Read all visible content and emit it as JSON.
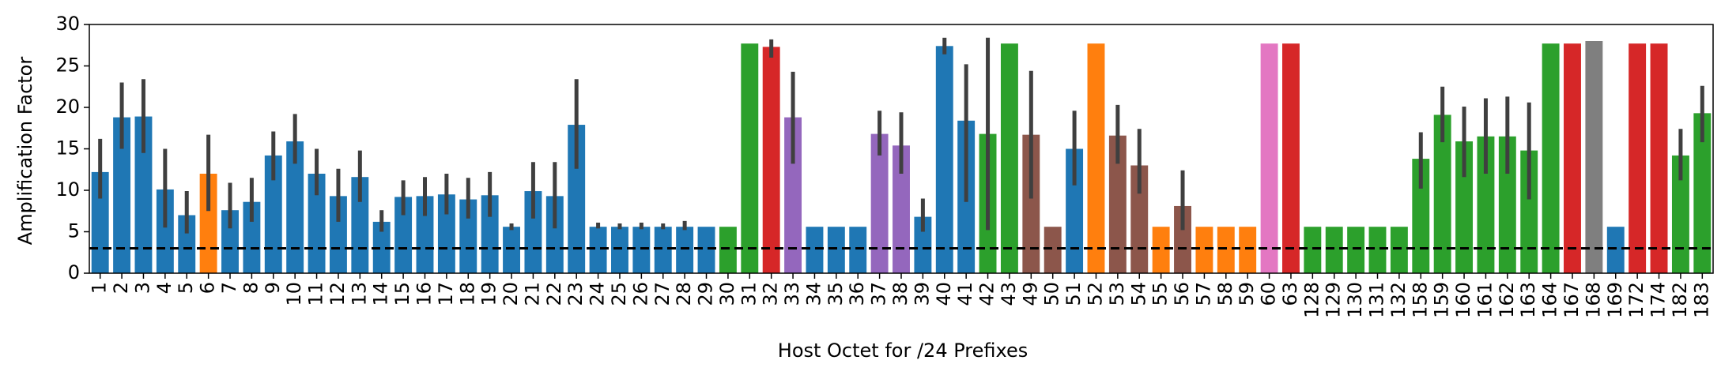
{
  "chart_data": {
    "type": "bar",
    "title": "",
    "xlabel": "Host Octet for /24 Prefixes",
    "ylabel": "Amplification Factor",
    "ylim": [
      0,
      30
    ],
    "yticks": [
      0,
      5,
      10,
      15,
      20,
      25,
      30
    ],
    "reference_line": {
      "y": 3,
      "style": "dashed",
      "color": "#000000"
    },
    "palette": {
      "blue": "#1f77b4",
      "orange": "#ff7f0e",
      "green": "#2ca02c",
      "red": "#d62728",
      "purple": "#9467bd",
      "brown": "#8c564b",
      "pink": "#e377c2",
      "gray": "#7f7f7f"
    },
    "error_bar_color": "#3f3f3f",
    "bars": [
      {
        "label": "1",
        "value": 12.2,
        "err": [
          9.0,
          16.2
        ],
        "color": "blue"
      },
      {
        "label": "2",
        "value": 18.8,
        "err": [
          15.0,
          23.0
        ],
        "color": "blue"
      },
      {
        "label": "3",
        "value": 18.9,
        "err": [
          14.5,
          23.4
        ],
        "color": "blue"
      },
      {
        "label": "4",
        "value": 10.1,
        "err": [
          5.5,
          15.0
        ],
        "color": "blue"
      },
      {
        "label": "5",
        "value": 7.0,
        "err": [
          4.8,
          9.9
        ],
        "color": "blue"
      },
      {
        "label": "6",
        "value": 12.0,
        "err": [
          7.5,
          16.7
        ],
        "color": "orange"
      },
      {
        "label": "7",
        "value": 7.6,
        "err": [
          5.4,
          10.9
        ],
        "color": "blue"
      },
      {
        "label": "8",
        "value": 8.6,
        "err": [
          6.2,
          11.5
        ],
        "color": "blue"
      },
      {
        "label": "9",
        "value": 14.2,
        "err": [
          11.2,
          17.1
        ],
        "color": "blue"
      },
      {
        "label": "10",
        "value": 15.9,
        "err": [
          13.2,
          19.2
        ],
        "color": "blue"
      },
      {
        "label": "11",
        "value": 12.0,
        "err": [
          9.4,
          15.0
        ],
        "color": "blue"
      },
      {
        "label": "12",
        "value": 9.3,
        "err": [
          6.2,
          12.6
        ],
        "color": "blue"
      },
      {
        "label": "13",
        "value": 11.6,
        "err": [
          8.6,
          14.8
        ],
        "color": "blue"
      },
      {
        "label": "14",
        "value": 6.2,
        "err": [
          5.0,
          7.6
        ],
        "color": "blue"
      },
      {
        "label": "15",
        "value": 9.2,
        "err": [
          7.0,
          11.2
        ],
        "color": "blue"
      },
      {
        "label": "16",
        "value": 9.3,
        "err": [
          6.9,
          11.6
        ],
        "color": "blue"
      },
      {
        "label": "17",
        "value": 9.5,
        "err": [
          7.1,
          12.0
        ],
        "color": "blue"
      },
      {
        "label": "18",
        "value": 8.9,
        "err": [
          6.6,
          11.5
        ],
        "color": "blue"
      },
      {
        "label": "19",
        "value": 9.4,
        "err": [
          6.8,
          12.2
        ],
        "color": "blue"
      },
      {
        "label": "20",
        "value": 5.6,
        "err": [
          5.2,
          6.0
        ],
        "color": "blue"
      },
      {
        "label": "21",
        "value": 9.9,
        "err": [
          6.6,
          13.4
        ],
        "color": "blue"
      },
      {
        "label": "22",
        "value": 9.3,
        "err": [
          5.4,
          13.4
        ],
        "color": "blue"
      },
      {
        "label": "23",
        "value": 17.9,
        "err": [
          12.6,
          23.4
        ],
        "color": "blue"
      },
      {
        "label": "24",
        "value": 5.6,
        "err": [
          5.4,
          6.1
        ],
        "color": "blue"
      },
      {
        "label": "25",
        "value": 5.6,
        "err": [
          5.3,
          6.0
        ],
        "color": "blue"
      },
      {
        "label": "26",
        "value": 5.6,
        "err": [
          5.3,
          6.1
        ],
        "color": "blue"
      },
      {
        "label": "27",
        "value": 5.6,
        "err": [
          5.3,
          6.0
        ],
        "color": "blue"
      },
      {
        "label": "28",
        "value": 5.6,
        "err": [
          5.2,
          6.3
        ],
        "color": "blue"
      },
      {
        "label": "29",
        "value": 5.6,
        "err": null,
        "color": "blue"
      },
      {
        "label": "30",
        "value": 5.6,
        "err": null,
        "color": "green"
      },
      {
        "label": "31",
        "value": 27.7,
        "err": null,
        "color": "green"
      },
      {
        "label": "32",
        "value": 27.3,
        "err": [
          26.0,
          28.2
        ],
        "color": "red"
      },
      {
        "label": "33",
        "value": 18.8,
        "err": [
          13.2,
          24.3
        ],
        "color": "purple"
      },
      {
        "label": "34",
        "value": 5.6,
        "err": null,
        "color": "blue"
      },
      {
        "label": "35",
        "value": 5.6,
        "err": null,
        "color": "blue"
      },
      {
        "label": "36",
        "value": 5.6,
        "err": null,
        "color": "blue"
      },
      {
        "label": "37",
        "value": 16.8,
        "err": [
          14.2,
          19.6
        ],
        "color": "purple"
      },
      {
        "label": "38",
        "value": 15.4,
        "err": [
          12.0,
          19.4
        ],
        "color": "purple"
      },
      {
        "label": "39",
        "value": 6.8,
        "err": [
          5.0,
          9.0
        ],
        "color": "blue"
      },
      {
        "label": "40",
        "value": 27.4,
        "err": [
          26.4,
          28.4
        ],
        "color": "blue"
      },
      {
        "label": "41",
        "value": 18.4,
        "err": [
          8.6,
          25.2
        ],
        "color": "blue"
      },
      {
        "label": "42",
        "value": 16.8,
        "err": [
          5.2,
          28.4
        ],
        "color": "green"
      },
      {
        "label": "43",
        "value": 27.7,
        "err": null,
        "color": "green"
      },
      {
        "label": "49",
        "value": 16.7,
        "err": [
          9.0,
          24.4
        ],
        "color": "brown"
      },
      {
        "label": "50",
        "value": 5.6,
        "err": null,
        "color": "brown"
      },
      {
        "label": "51",
        "value": 15.0,
        "err": [
          10.6,
          19.6
        ],
        "color": "blue"
      },
      {
        "label": "52",
        "value": 27.7,
        "err": null,
        "color": "orange"
      },
      {
        "label": "53",
        "value": 16.6,
        "err": [
          13.2,
          20.3
        ],
        "color": "brown"
      },
      {
        "label": "54",
        "value": 13.0,
        "err": [
          9.6,
          17.4
        ],
        "color": "brown"
      },
      {
        "label": "55",
        "value": 5.6,
        "err": null,
        "color": "orange"
      },
      {
        "label": "56",
        "value": 8.1,
        "err": [
          5.2,
          12.4
        ],
        "color": "brown"
      },
      {
        "label": "57",
        "value": 5.6,
        "err": null,
        "color": "orange"
      },
      {
        "label": "58",
        "value": 5.6,
        "err": null,
        "color": "orange"
      },
      {
        "label": "59",
        "value": 5.6,
        "err": null,
        "color": "orange"
      },
      {
        "label": "60",
        "value": 27.7,
        "err": null,
        "color": "pink"
      },
      {
        "label": "63",
        "value": 27.7,
        "err": null,
        "color": "red"
      },
      {
        "label": "128",
        "value": 5.6,
        "err": null,
        "color": "green"
      },
      {
        "label": "129",
        "value": 5.6,
        "err": null,
        "color": "green"
      },
      {
        "label": "130",
        "value": 5.6,
        "err": null,
        "color": "green"
      },
      {
        "label": "131",
        "value": 5.6,
        "err": null,
        "color": "green"
      },
      {
        "label": "132",
        "value": 5.6,
        "err": null,
        "color": "green"
      },
      {
        "label": "158",
        "value": 13.8,
        "err": [
          10.2,
          17.0
        ],
        "color": "green"
      },
      {
        "label": "159",
        "value": 19.1,
        "err": [
          15.8,
          22.5
        ],
        "color": "green"
      },
      {
        "label": "160",
        "value": 15.9,
        "err": [
          11.6,
          20.1
        ],
        "color": "green"
      },
      {
        "label": "161",
        "value": 16.5,
        "err": [
          12.0,
          21.1
        ],
        "color": "green"
      },
      {
        "label": "162",
        "value": 16.5,
        "err": [
          12.0,
          21.3
        ],
        "color": "green"
      },
      {
        "label": "163",
        "value": 14.8,
        "err": [
          8.9,
          20.6
        ],
        "color": "green"
      },
      {
        "label": "164",
        "value": 27.7,
        "err": null,
        "color": "green"
      },
      {
        "label": "167",
        "value": 27.7,
        "err": null,
        "color": "red"
      },
      {
        "label": "168",
        "value": 28.0,
        "err": null,
        "color": "gray"
      },
      {
        "label": "169",
        "value": 5.6,
        "err": null,
        "color": "blue"
      },
      {
        "label": "172",
        "value": 27.7,
        "err": null,
        "color": "red"
      },
      {
        "label": "174",
        "value": 27.7,
        "err": null,
        "color": "red"
      },
      {
        "label": "182",
        "value": 14.2,
        "err": [
          11.2,
          17.4
        ],
        "color": "green"
      },
      {
        "label": "183",
        "value": 19.3,
        "err": [
          15.8,
          22.6
        ],
        "color": "green"
      }
    ]
  }
}
